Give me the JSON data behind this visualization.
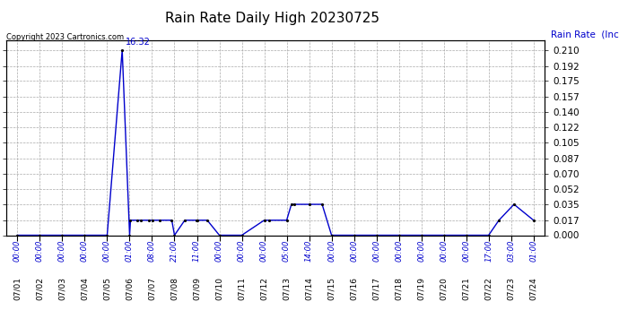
{
  "title": "Rain Rate Daily High 20230725",
  "ylabel": "Rain Rate  (Inches/Hour)",
  "copyright_text": "Copyright 2023 Cartronics.com",
  "peak_label": "16:32",
  "background_color": "#ffffff",
  "line_color": "#0000cc",
  "grid_color": "#aaaaaa",
  "text_color_blue": "#0000cc",
  "text_color_black": "#000000",
  "ylim": [
    0.0,
    0.221
  ],
  "yticks": [
    0.0,
    0.017,
    0.035,
    0.052,
    0.07,
    0.087,
    0.105,
    0.122,
    0.14,
    0.157,
    0.175,
    0.192,
    0.21
  ],
  "x_dates": [
    "07/01",
    "07/02",
    "07/03",
    "07/04",
    "07/05",
    "07/06",
    "07/07",
    "07/08",
    "07/09",
    "07/10",
    "07/11",
    "07/12",
    "07/13",
    "07/14",
    "07/15",
    "07/16",
    "07/17",
    "07/18",
    "07/19",
    "07/20",
    "07/21",
    "07/22",
    "07/23",
    "07/24"
  ],
  "x_numeric": [
    0,
    1,
    2,
    3,
    4,
    5,
    6,
    7,
    8,
    9,
    10,
    11,
    12,
    13,
    14,
    15,
    16,
    17,
    18,
    19,
    20,
    21,
    22,
    23
  ],
  "data_x": [
    0.0,
    1.0,
    2.0,
    3.0,
    4.0,
    4.67,
    5.0,
    5.04,
    5.33,
    5.5,
    5.88,
    6.04,
    6.33,
    6.88,
    7.0,
    7.46,
    7.96,
    8.0,
    8.46,
    9.0,
    10.0,
    11.0,
    11.21,
    12.0,
    12.21,
    12.35,
    13.0,
    13.58,
    14.0,
    15.0,
    16.0,
    17.0,
    18.0,
    19.0,
    20.0,
    21.0,
    21.46,
    22.13,
    23.0
  ],
  "data_y": [
    0.0,
    0.0,
    0.0,
    0.0,
    0.0,
    0.21,
    0.0,
    0.017,
    0.017,
    0.017,
    0.017,
    0.017,
    0.017,
    0.017,
    0.0,
    0.017,
    0.017,
    0.017,
    0.017,
    0.0,
    0.0,
    0.017,
    0.017,
    0.017,
    0.035,
    0.035,
    0.035,
    0.035,
    0.0,
    0.0,
    0.0,
    0.0,
    0.0,
    0.0,
    0.0,
    0.0,
    0.017,
    0.035,
    0.017
  ],
  "tick_labels_x_time": [
    "00:00",
    "00:00",
    "00:00",
    "00:00",
    "00:00",
    "01:00",
    "08:00",
    "21:00",
    "11:00",
    "00:00",
    "00:00",
    "00:00",
    "05:00",
    "14:00",
    "00:00",
    "00:00",
    "00:00",
    "00:00",
    "00:00",
    "00:00",
    "00:00",
    "17:00",
    "03:00",
    "01:00"
  ]
}
